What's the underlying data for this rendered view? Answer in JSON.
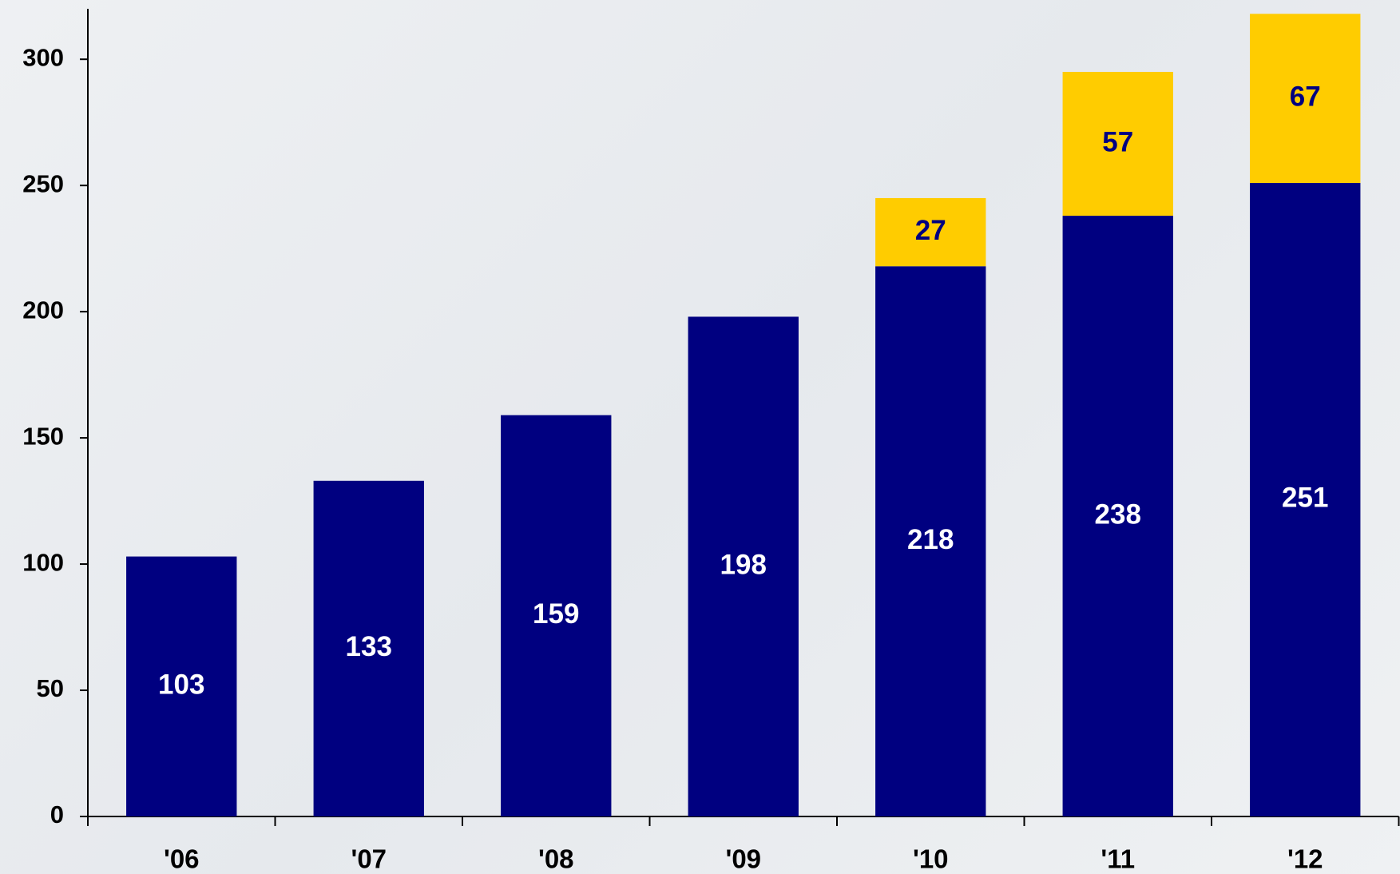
{
  "chart_data": {
    "type": "stacked_bar",
    "categories": [
      "'06",
      "'07",
      "'08",
      "'09",
      "'10",
      "'11",
      "'12"
    ],
    "series": [
      {
        "color": "#000080",
        "label_color": "#ffffff",
        "values": [
          103,
          133,
          159,
          198,
          218,
          238,
          251
        ]
      },
      {
        "color": "#ffcc00",
        "label_color": "#000080",
        "values": [
          null,
          null,
          null,
          null,
          27,
          57,
          67
        ]
      }
    ],
    "ylim": [
      0,
      320
    ],
    "yticks": [
      0,
      50,
      100,
      150,
      200,
      250,
      300
    ],
    "grid": false
  }
}
